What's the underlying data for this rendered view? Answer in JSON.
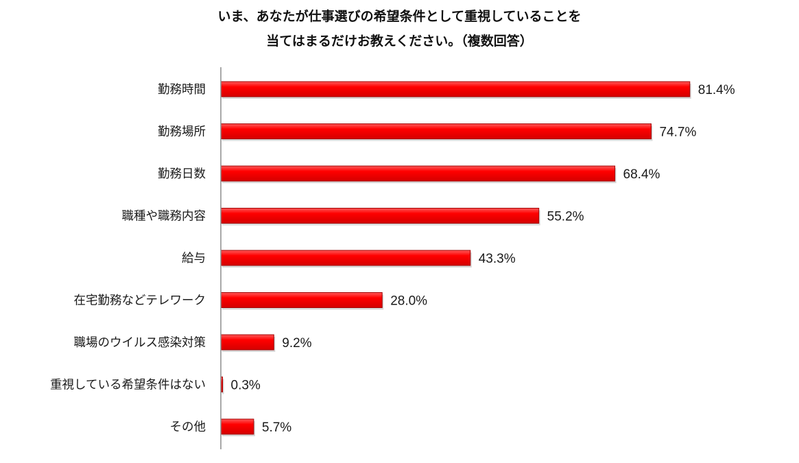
{
  "chart_data": {
    "type": "bar",
    "orientation": "horizontal",
    "title": "いま、あなたが仕事選びの希望条件として重視していることを",
    "subtitle": "当てはまるだけお教えください。（複数回答）",
    "categories": [
      "勤務時間",
      "勤務場所",
      "勤務日数",
      "職種や職務内容",
      "給与",
      "在宅勤務などテレワーク",
      "職場のウイルス感染対策",
      "重視している希望条件はない",
      "その他"
    ],
    "values": [
      81.4,
      74.7,
      68.4,
      55.2,
      43.3,
      28.0,
      9.2,
      0.3,
      5.7
    ],
    "value_labels": [
      "81.4%",
      "74.7%",
      "68.4%",
      "55.2%",
      "43.3%",
      "28.0%",
      "9.2%",
      "0.3%",
      "5.7%"
    ],
    "xlim": [
      0,
      100
    ],
    "grid": false,
    "legend": "none",
    "bar_color": "#ff0000",
    "bar_edge_color": "#a30000"
  }
}
